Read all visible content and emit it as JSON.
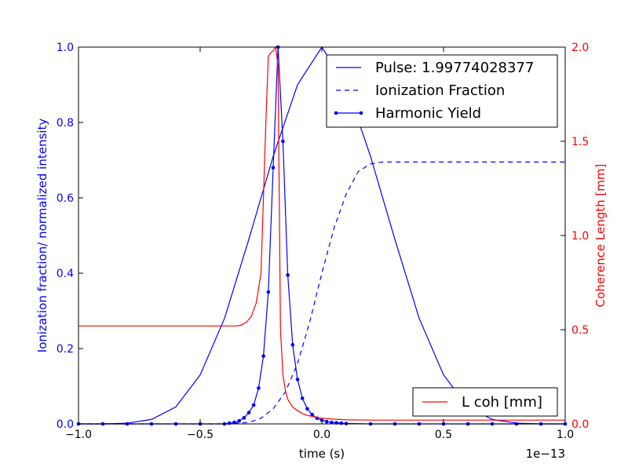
{
  "chart_data": {
    "type": "line",
    "xlabel": "time (s)",
    "x_offset_text": "1e−13",
    "x_scale_exponent": -13,
    "xlim": [
      -1.0,
      1.0
    ],
    "ylabel_left": "Ionization fraction/ normalized intensity",
    "ylim_left": [
      0.0,
      1.0
    ],
    "ylabel_right": "Coherence Length [mm]",
    "ylim_right": [
      0.0,
      2.0
    ],
    "x_ticks": [
      "−1.0",
      "−0.5",
      "0.0",
      "0.5",
      "1.0"
    ],
    "y_ticks_left": [
      "0.0",
      "0.2",
      "0.4",
      "0.6",
      "0.8",
      "1.0"
    ],
    "y_ticks_right": [
      "0.0",
      "0.5",
      "1.0",
      "1.5",
      "2.0"
    ],
    "grid": false,
    "legend_main_position": "top-right",
    "legend_secondary_position": "bottom-right",
    "series": [
      {
        "name": "Pulse: 1.99774028377",
        "axis": "left",
        "color": "#0000ff",
        "style": "solid",
        "x": [
          -1.0,
          -0.9,
          -0.8,
          -0.7,
          -0.6,
          -0.5,
          -0.4,
          -0.3,
          -0.2,
          -0.1,
          0.0,
          0.1,
          0.2,
          0.3,
          0.4,
          0.5,
          0.6,
          0.7,
          0.8,
          0.9,
          1.0
        ],
        "y": [
          0.0,
          0.0,
          0.002,
          0.012,
          0.045,
          0.13,
          0.28,
          0.49,
          0.71,
          0.9,
          1.0,
          0.9,
          0.71,
          0.49,
          0.28,
          0.13,
          0.045,
          0.012,
          0.002,
          0.0,
          0.0
        ]
      },
      {
        "name": "Ionization Fraction",
        "axis": "left",
        "color": "#0000ff",
        "style": "dashed",
        "x": [
          -1.0,
          -0.4,
          -0.3,
          -0.25,
          -0.2,
          -0.15,
          -0.1,
          -0.05,
          0.0,
          0.05,
          0.1,
          0.15,
          0.2,
          0.25,
          0.3,
          0.4,
          1.0
        ],
        "y": [
          0.0,
          0.0,
          0.004,
          0.015,
          0.04,
          0.085,
          0.16,
          0.27,
          0.4,
          0.52,
          0.61,
          0.67,
          0.69,
          0.695,
          0.695,
          0.695,
          0.695
        ]
      },
      {
        "name": "Harmonic Yield",
        "axis": "left",
        "color": "#0000ff",
        "style": "solid-markers",
        "x": [
          -1.0,
          -0.9,
          -0.8,
          -0.7,
          -0.6,
          -0.5,
          -0.4,
          -0.38,
          -0.36,
          -0.34,
          -0.32,
          -0.3,
          -0.28,
          -0.26,
          -0.24,
          -0.22,
          -0.2,
          -0.18,
          -0.16,
          -0.14,
          -0.12,
          -0.1,
          -0.08,
          -0.06,
          -0.04,
          -0.02,
          0.0,
          0.02,
          0.04,
          0.06,
          0.08,
          0.1,
          0.2,
          0.3,
          0.4,
          0.5,
          0.6,
          0.7,
          0.8,
          0.9,
          1.0
        ],
        "y": [
          0.0,
          0.0,
          0.0,
          0.0,
          0.0,
          0.0,
          0.0,
          0.002,
          0.004,
          0.008,
          0.016,
          0.03,
          0.05,
          0.095,
          0.18,
          0.35,
          0.68,
          1.0,
          0.75,
          0.395,
          0.21,
          0.118,
          0.068,
          0.04,
          0.025,
          0.015,
          0.01,
          0.006,
          0.004,
          0.003,
          0.002,
          0.001,
          0.0,
          0.0,
          0.0,
          0.0,
          0.0,
          0.0,
          0.0,
          0.0,
          0.0
        ]
      },
      {
        "name": "L coh [mm]",
        "axis": "right",
        "color": "#ff0000",
        "style": "solid",
        "x": [
          -1.0,
          -0.35,
          -0.33,
          -0.31,
          -0.29,
          -0.27,
          -0.25,
          -0.23,
          -0.22,
          -0.21,
          -0.2,
          -0.19,
          -0.18,
          -0.17,
          -0.16,
          -0.15,
          -0.14,
          -0.12,
          -0.1,
          -0.08,
          -0.06,
          -0.04,
          -0.02,
          0.0,
          0.05,
          0.1,
          0.2,
          0.4,
          1.0
        ],
        "y": [
          0.52,
          0.52,
          0.525,
          0.54,
          0.57,
          0.64,
          0.8,
          1.6,
          1.95,
          1.97,
          1.98,
          2.0,
          1.9,
          0.5,
          0.26,
          0.18,
          0.13,
          0.09,
          0.07,
          0.055,
          0.045,
          0.04,
          0.035,
          0.03,
          0.025,
          0.022,
          0.02,
          0.02,
          0.02
        ]
      }
    ]
  },
  "legend_main": {
    "items": [
      "Pulse: 1.99774028377",
      "Ionization Fraction",
      "Harmonic Yield"
    ]
  },
  "legend_secondary": {
    "items": [
      "L coh [mm]"
    ]
  }
}
